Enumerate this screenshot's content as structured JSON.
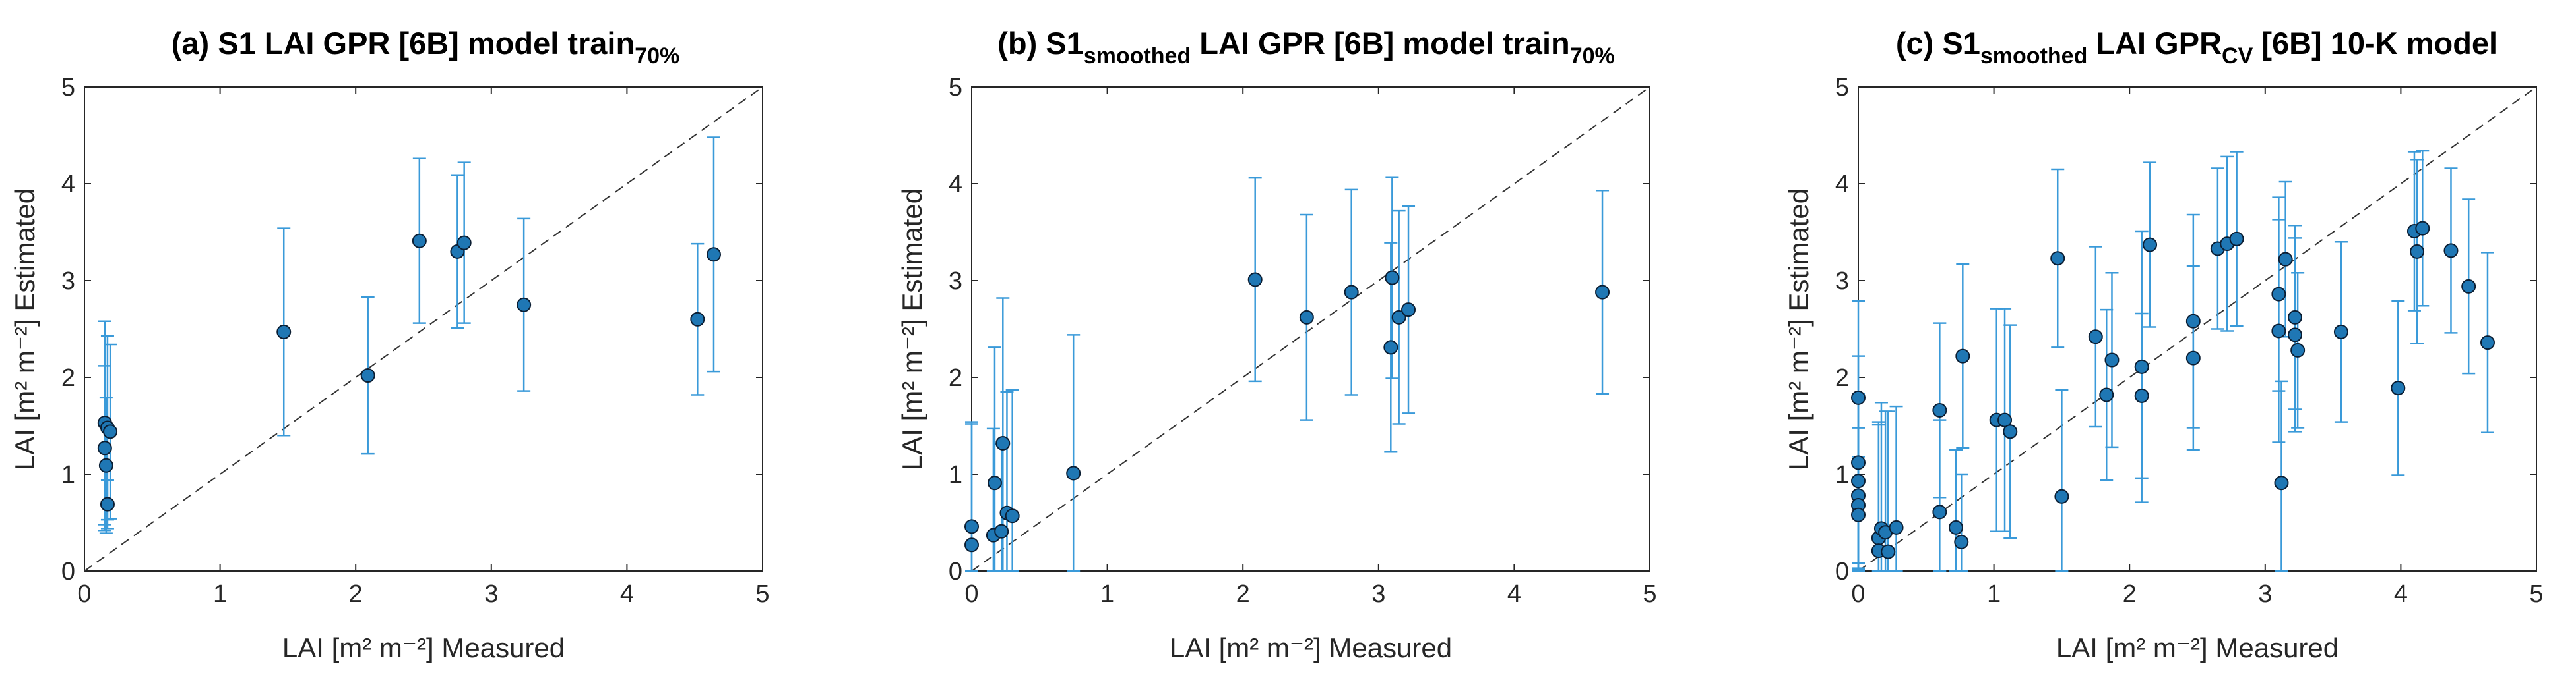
{
  "chart_data": [
    {
      "type": "scatter",
      "title": "(a) S1 LAI GPR [6B] model train",
      "title_sub": "70%",
      "xlabel": "LAI [m² m⁻²]  Measured",
      "ylabel": "LAI [m² m⁻²] Estimated",
      "xlim": [
        0,
        5
      ],
      "ylim": [
        0,
        5
      ],
      "xticks": [
        "0",
        "1",
        "2",
        "3",
        "4",
        "5"
      ],
      "yticks": [
        "0",
        "1",
        "2",
        "3",
        "4",
        "5"
      ],
      "one_to_one_line": true,
      "marker_color": "#1f77b4",
      "errorbar_color": "#3a9ad9",
      "points": [
        {
          "x": 0.15,
          "y": 1.53,
          "err": 1.05
        },
        {
          "x": 0.17,
          "y": 1.48,
          "err": 0.95
        },
        {
          "x": 0.19,
          "y": 1.44,
          "err": 0.9
        },
        {
          "x": 0.15,
          "y": 1.27,
          "err": 0.85
        },
        {
          "x": 0.16,
          "y": 1.09,
          "err": 0.7
        },
        {
          "x": 0.17,
          "y": 0.69,
          "err": 0.25
        },
        {
          "x": 1.47,
          "y": 2.47,
          "err": 1.07
        },
        {
          "x": 2.09,
          "y": 2.02,
          "err": 0.81
        },
        {
          "x": 2.47,
          "y": 3.41,
          "err": 0.85
        },
        {
          "x": 2.75,
          "y": 3.3,
          "err": 0.79
        },
        {
          "x": 2.8,
          "y": 3.39,
          "err": 0.83
        },
        {
          "x": 3.24,
          "y": 2.75,
          "err": 0.89
        },
        {
          "x": 4.52,
          "y": 2.6,
          "err": 0.78
        },
        {
          "x": 4.64,
          "y": 3.27,
          "err": 1.21
        }
      ]
    },
    {
      "type": "scatter",
      "title": "(b) S1",
      "title_sub1": "smoothed",
      "title_mid": " LAI GPR [6B] model train",
      "title_sub": "70%",
      "xlabel": "LAI [m² m⁻²]  Measured",
      "ylabel": "LAI [m² m⁻²]  Estimated",
      "xlim": [
        0,
        5
      ],
      "ylim": [
        0,
        5
      ],
      "xticks": [
        "0",
        "1",
        "2",
        "3",
        "4",
        "5"
      ],
      "yticks": [
        "0",
        "1",
        "2",
        "3",
        "4",
        "5"
      ],
      "one_to_one_line": true,
      "marker_color": "#1f77b4",
      "errorbar_color": "#3a9ad9",
      "points": [
        {
          "x": 0.0,
          "y": 0.46,
          "err": 1.08
        },
        {
          "x": 0.0,
          "y": 0.27,
          "err": 1.25
        },
        {
          "x": 0.16,
          "y": 0.37,
          "err": 1.1
        },
        {
          "x": 0.17,
          "y": 0.91,
          "err": 1.4
        },
        {
          "x": 0.22,
          "y": 0.41,
          "err": 0.9
        },
        {
          "x": 0.23,
          "y": 1.32,
          "err": 1.5
        },
        {
          "x": 0.26,
          "y": 0.6,
          "err": 1.25
        },
        {
          "x": 0.3,
          "y": 0.57,
          "err": 1.3
        },
        {
          "x": 0.75,
          "y": 1.01,
          "err": 1.43
        },
        {
          "x": 2.09,
          "y": 3.01,
          "err": 1.05
        },
        {
          "x": 2.47,
          "y": 2.62,
          "err": 1.06
        },
        {
          "x": 2.8,
          "y": 2.88,
          "err": 1.06
        },
        {
          "x": 3.09,
          "y": 2.31,
          "err": 1.08
        },
        {
          "x": 3.1,
          "y": 3.03,
          "err": 1.04
        },
        {
          "x": 3.15,
          "y": 2.62,
          "err": 1.1
        },
        {
          "x": 3.22,
          "y": 2.7,
          "err": 1.07
        },
        {
          "x": 4.65,
          "y": 2.88,
          "err": 1.05
        }
      ]
    },
    {
      "type": "scatter",
      "title": "(c) S1",
      "title_sub1": "smoothed",
      "title_mid": " LAI GPR",
      "title_sub2": "CV",
      "title_end": " [6B] 10-K model",
      "xlabel": "LAI [m² m⁻²]  Measured",
      "ylabel": "LAI [m² m⁻²]  Estimated",
      "xlim": [
        0,
        5
      ],
      "ylim": [
        0,
        5
      ],
      "xticks": [
        "0",
        "1",
        "2",
        "3",
        "4",
        "5"
      ],
      "yticks": [
        "0",
        "1",
        "2",
        "3",
        "4",
        "5"
      ],
      "one_to_one_line": true,
      "marker_color": "#1f77b4",
      "errorbar_color": "#3a9ad9",
      "points": [
        {
          "x": 0.0,
          "y": 1.79,
          "err": 1.0
        },
        {
          "x": 0.0,
          "y": 1.12,
          "err": 1.1
        },
        {
          "x": 0.0,
          "y": 0.93,
          "err": 0.9
        },
        {
          "x": 0.0,
          "y": 0.78,
          "err": 0.7
        },
        {
          "x": 0.0,
          "y": 0.68,
          "err": 0.8
        },
        {
          "x": 0.0,
          "y": 0.58,
          "err": 0.6
        },
        {
          "x": 0.15,
          "y": 0.34,
          "err": 1.2
        },
        {
          "x": 0.15,
          "y": 0.21,
          "err": 1.3
        },
        {
          "x": 0.17,
          "y": 0.44,
          "err": 1.3
        },
        {
          "x": 0.2,
          "y": 0.4,
          "err": 1.25
        },
        {
          "x": 0.22,
          "y": 0.2,
          "err": 1.45
        },
        {
          "x": 0.28,
          "y": 0.45,
          "err": 1.25
        },
        {
          "x": 0.6,
          "y": 1.66,
          "err": 0.9
        },
        {
          "x": 0.6,
          "y": 0.61,
          "err": 0.95
        },
        {
          "x": 0.72,
          "y": 0.45,
          "err": 0.8
        },
        {
          "x": 0.76,
          "y": 0.3,
          "err": 0.7
        },
        {
          "x": 0.77,
          "y": 2.22,
          "err": 0.95
        },
        {
          "x": 1.02,
          "y": 1.56,
          "err": 1.15
        },
        {
          "x": 1.08,
          "y": 1.56,
          "err": 1.15
        },
        {
          "x": 1.12,
          "y": 1.44,
          "err": 1.1
        },
        {
          "x": 1.47,
          "y": 3.23,
          "err": 0.92
        },
        {
          "x": 1.5,
          "y": 0.77,
          "err": 1.1
        },
        {
          "x": 1.75,
          "y": 2.42,
          "err": 0.93
        },
        {
          "x": 1.83,
          "y": 1.82,
          "err": 0.88
        },
        {
          "x": 1.87,
          "y": 2.18,
          "err": 0.9
        },
        {
          "x": 2.09,
          "y": 1.81,
          "err": 0.85
        },
        {
          "x": 2.09,
          "y": 2.11,
          "err": 1.4
        },
        {
          "x": 2.15,
          "y": 3.37,
          "err": 0.85
        },
        {
          "x": 2.47,
          "y": 2.58,
          "err": 1.1
        },
        {
          "x": 2.47,
          "y": 2.2,
          "err": 0.95
        },
        {
          "x": 2.65,
          "y": 3.33,
          "err": 0.83
        },
        {
          "x": 2.72,
          "y": 3.38,
          "err": 0.9
        },
        {
          "x": 2.79,
          "y": 3.43,
          "err": 0.9
        },
        {
          "x": 3.1,
          "y": 2.86,
          "err": 1.0
        },
        {
          "x": 3.1,
          "y": 2.48,
          "err": 1.15
        },
        {
          "x": 3.12,
          "y": 0.91,
          "err": 1.05
        },
        {
          "x": 3.15,
          "y": 3.22,
          "err": 0.8
        },
        {
          "x": 3.22,
          "y": 2.62,
          "err": 0.95
        },
        {
          "x": 3.22,
          "y": 2.44,
          "err": 1.0
        },
        {
          "x": 3.24,
          "y": 2.28,
          "err": 0.8
        },
        {
          "x": 3.56,
          "y": 2.47,
          "err": 0.93
        },
        {
          "x": 3.98,
          "y": 1.89,
          "err": 0.9
        },
        {
          "x": 4.1,
          "y": 3.51,
          "err": 0.82
        },
        {
          "x": 4.12,
          "y": 3.3,
          "err": 0.95
        },
        {
          "x": 4.16,
          "y": 3.54,
          "err": 0.8
        },
        {
          "x": 4.37,
          "y": 3.31,
          "err": 0.85
        },
        {
          "x": 4.5,
          "y": 2.94,
          "err": 0.9
        },
        {
          "x": 4.64,
          "y": 2.36,
          "err": 0.93
        }
      ]
    }
  ]
}
